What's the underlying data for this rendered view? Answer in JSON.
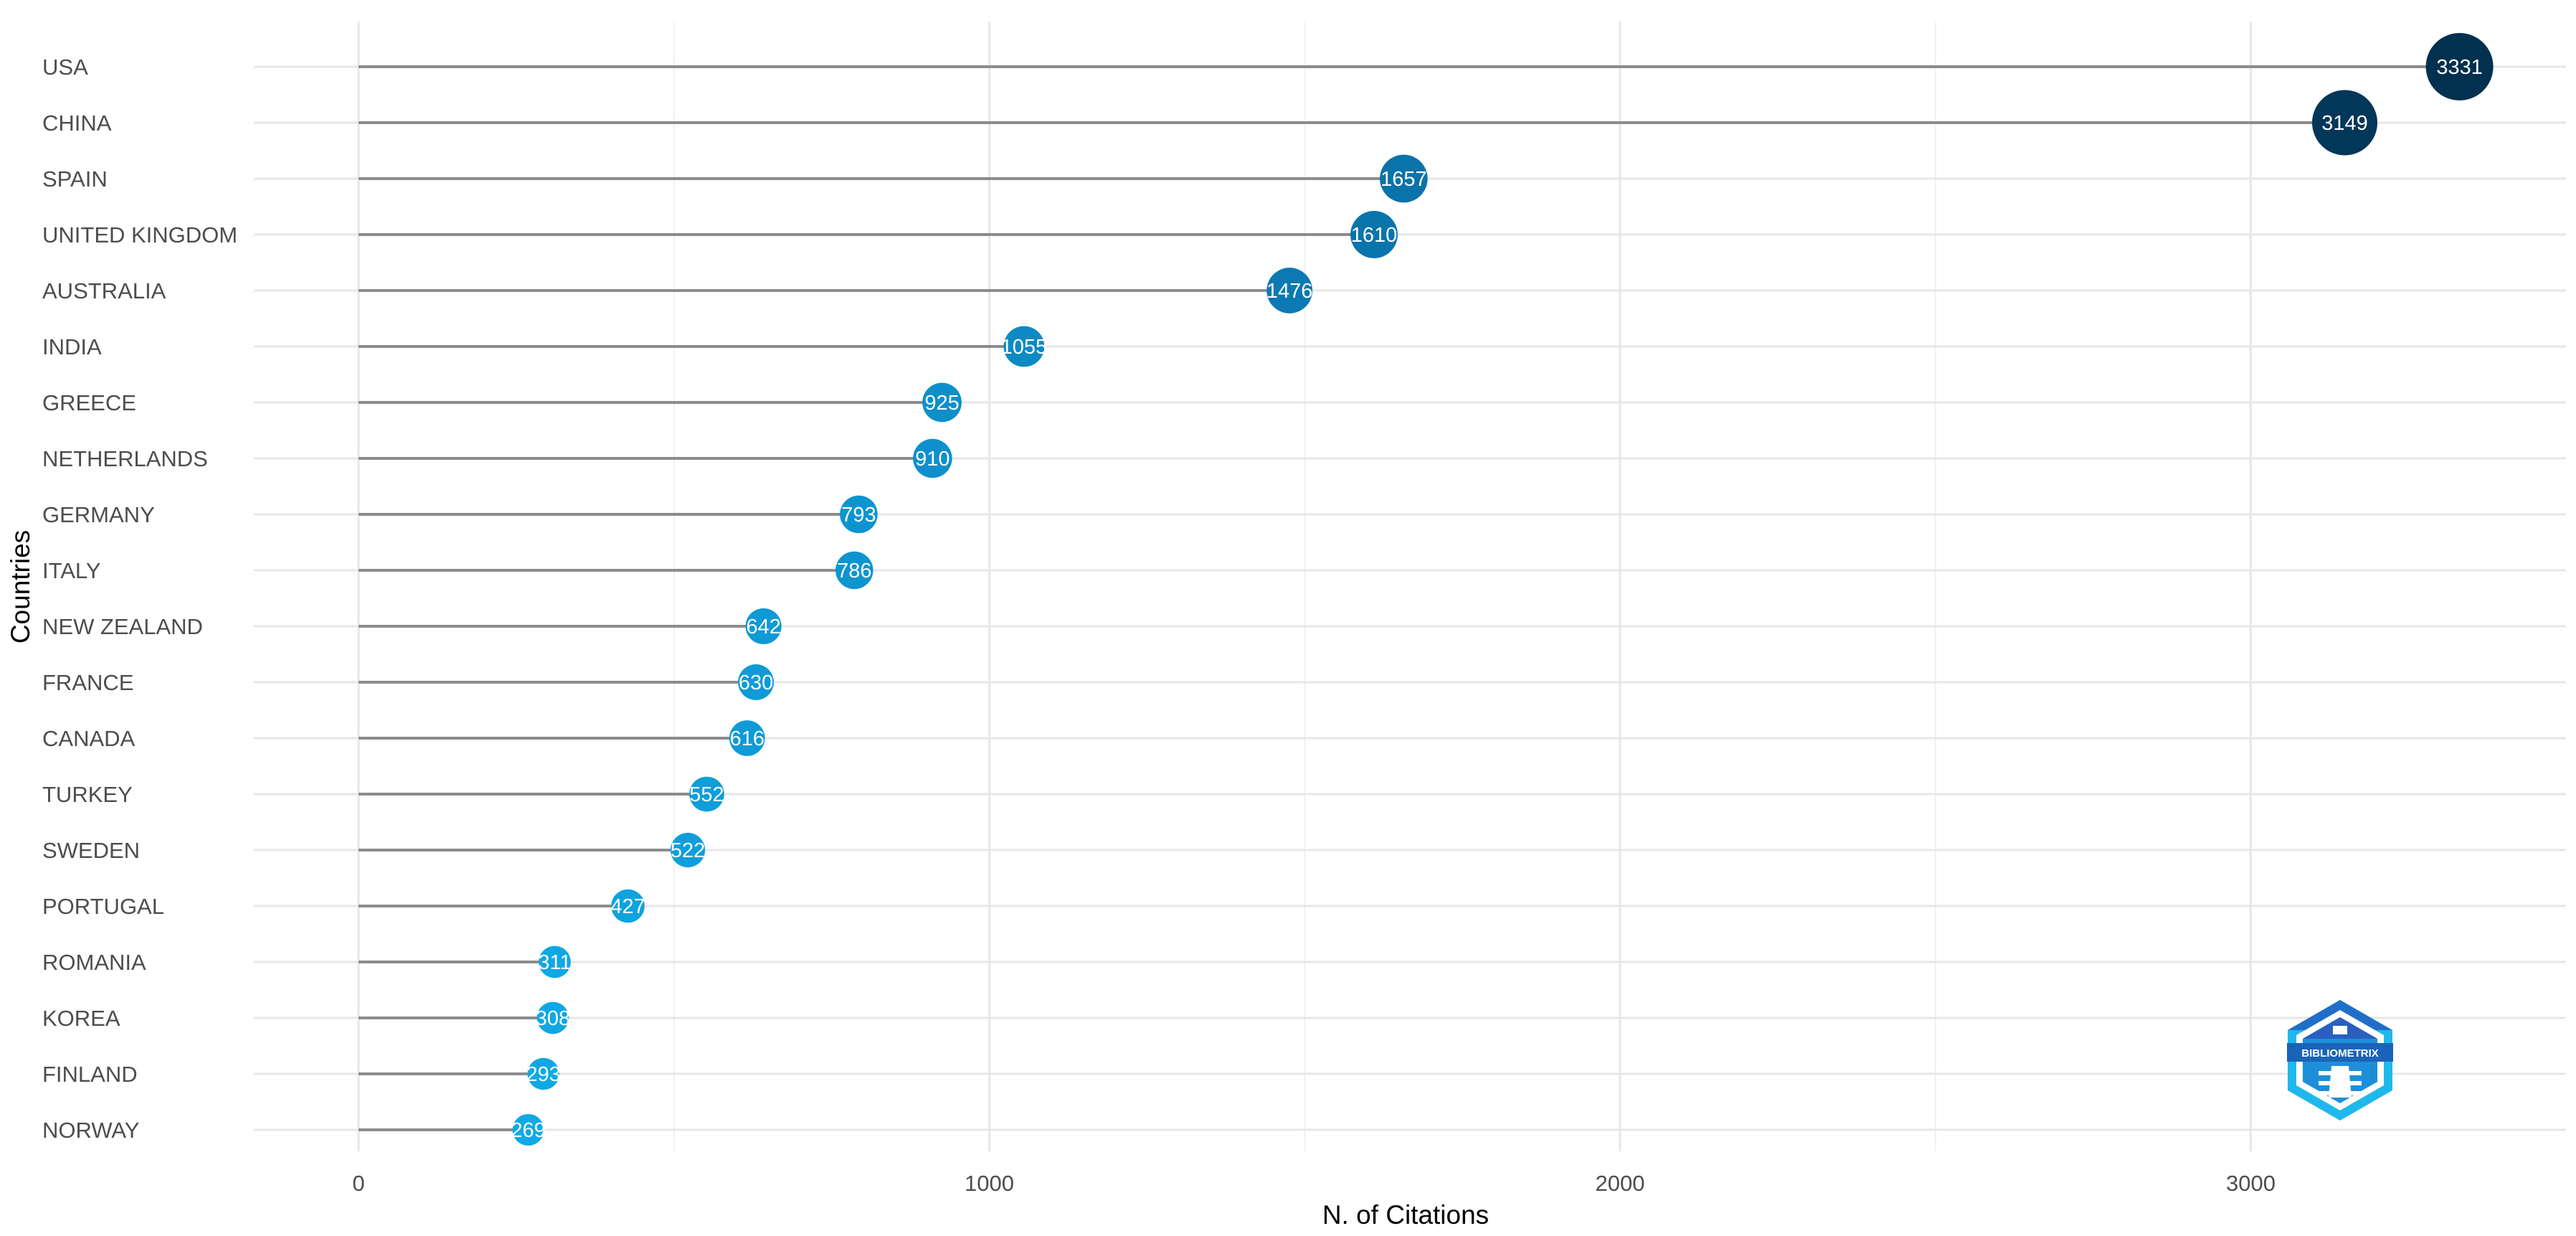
{
  "chart_data": {
    "type": "lollipop",
    "title": "",
    "xlabel": "N. of Citations",
    "ylabel": "Countries",
    "xlim": [
      -170,
      3495
    ],
    "x_ticks": [
      0,
      1000,
      2000,
      3000
    ],
    "grid": true,
    "legend": "none",
    "categories": [
      "USA",
      "CHINA",
      "SPAIN",
      "UNITED KINGDOM",
      "AUSTRALIA",
      "INDIA",
      "GREECE",
      "NETHERLANDS",
      "GERMANY",
      "ITALY",
      "NEW ZEALAND",
      "FRANCE",
      "CANADA",
      "TURKEY",
      "SWEDEN",
      "PORTUGAL",
      "ROMANIA",
      "KOREA",
      "FINLAND",
      "NORWAY"
    ],
    "values": [
      3331,
      3149,
      1657,
      1610,
      1476,
      1055,
      925,
      910,
      793,
      786,
      642,
      630,
      616,
      552,
      522,
      427,
      311,
      308,
      293,
      269
    ],
    "colors": {
      "segment": "#8c8c8c",
      "dot_low": "#0fa9e6",
      "dot_mid": "#0a73ab",
      "dot_high": "#02304f",
      "grid_major": "#e7e7e7",
      "grid_minor": "#f1f1f1"
    }
  },
  "logo": {
    "text": "BIBLIOMETRIX",
    "icon": "lighthouse-hexagon-icon"
  }
}
